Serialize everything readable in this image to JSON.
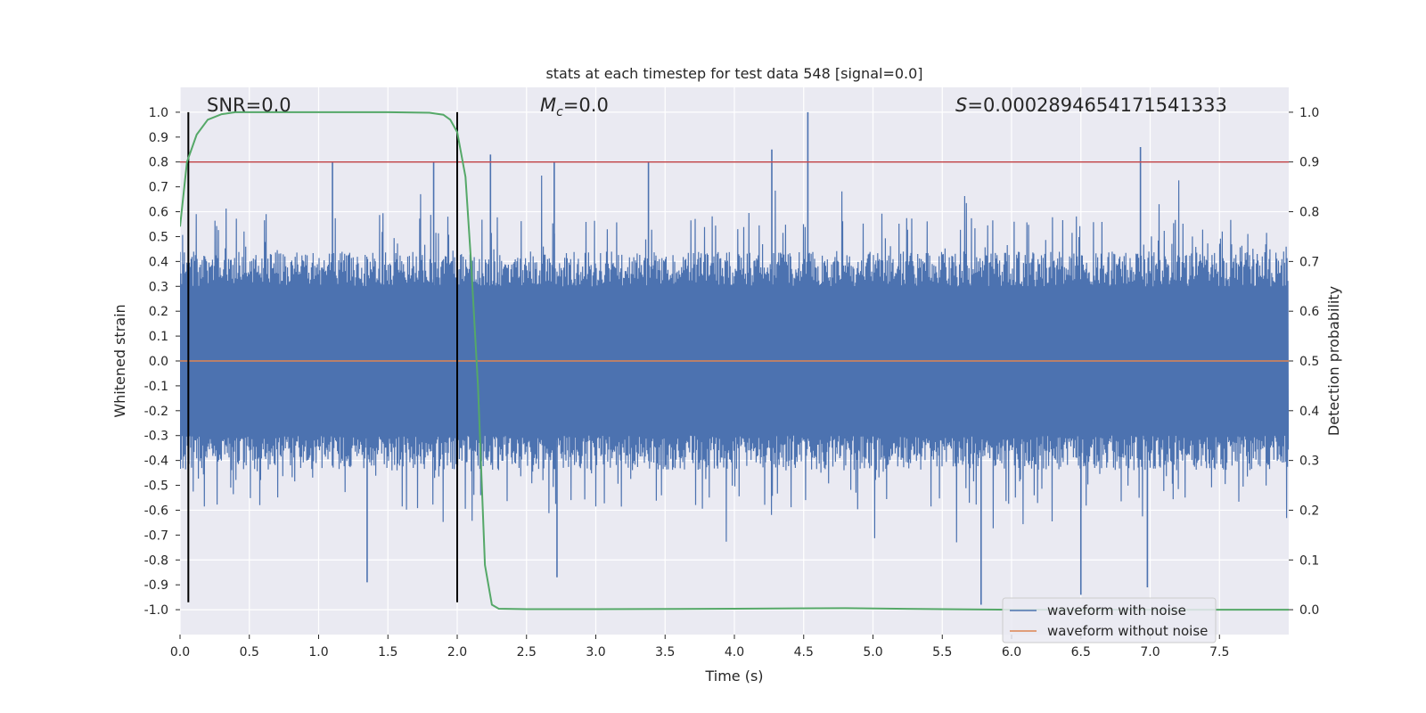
{
  "chart_data": {
    "type": "line",
    "title": "stats at each timestep for test data 548 [signal=0.0]",
    "xlabel": "Time (s)",
    "ylabel": "Whitened strain",
    "y2label": "Detection probability",
    "xlim": [
      0.0,
      8.0
    ],
    "ylim": [
      -1.1,
      1.1
    ],
    "y2lim": [
      -0.05,
      1.05
    ],
    "x_ticks": [
      "0.0",
      "0.5",
      "1.0",
      "1.5",
      "2.0",
      "2.5",
      "3.0",
      "3.5",
      "4.0",
      "4.5",
      "5.0",
      "5.5",
      "6.0",
      "6.5",
      "7.0",
      "7.5"
    ],
    "y_ticks": [
      "1.0",
      "0.9",
      "0.8",
      "0.7",
      "0.6",
      "0.5",
      "0.4",
      "0.3",
      "0.2",
      "0.1",
      "0.0",
      "-0.1",
      "-0.2",
      "-0.3",
      "-0.4",
      "-0.5",
      "-0.6",
      "-0.7",
      "-0.8",
      "-0.9",
      "-1.0"
    ],
    "y2_ticks": [
      "1.0",
      "0.9",
      "0.8",
      "0.7",
      "0.6",
      "0.5",
      "0.4",
      "0.3",
      "0.2",
      "0.1",
      "0.0"
    ],
    "annotations": {
      "snr": "SNR=0.0",
      "mc_symbol": "M",
      "mc_sub": "c",
      "mc_value": "=0.0",
      "s_symbol": "S",
      "s_value": "=0.0002894654171541333"
    },
    "threshold": {
      "value": 0.8,
      "axis": "left",
      "color": "#c44e52"
    },
    "vertical_lines": {
      "x": [
        0.06,
        2.0
      ],
      "y_range": [
        -0.97,
        1.0
      ],
      "color": "#000000"
    },
    "series": [
      {
        "name": "waveform with noise",
        "color": "#4c72b0",
        "axis": "left",
        "envelope": {
          "typical_abs": 0.45,
          "peak_max": 1.0,
          "peak_min": -0.98
        },
        "notable_peaks": [
          {
            "x": 1.1,
            "y": 0.8
          },
          {
            "x": 1.83,
            "y": 0.8
          },
          {
            "x": 2.24,
            "y": 0.83
          },
          {
            "x": 2.7,
            "y": 0.8
          },
          {
            "x": 3.38,
            "y": 0.8
          },
          {
            "x": 4.27,
            "y": 0.85
          },
          {
            "x": 4.53,
            "y": 1.0
          },
          {
            "x": 6.93,
            "y": 0.86
          },
          {
            "x": 1.35,
            "y": -0.89
          },
          {
            "x": 2.72,
            "y": -0.87
          },
          {
            "x": 5.78,
            "y": -0.98
          },
          {
            "x": 6.5,
            "y": -0.94
          },
          {
            "x": 6.98,
            "y": -0.91
          }
        ]
      },
      {
        "name": "waveform without noise",
        "color": "#dd8452",
        "axis": "left",
        "x": [
          0.0,
          8.0
        ],
        "y": [
          0.0,
          0.0
        ]
      },
      {
        "name": "detection probability",
        "color": "#55a868",
        "axis": "right",
        "x": [
          0.0,
          0.05,
          0.12,
          0.2,
          0.3,
          0.4,
          0.6,
          1.0,
          1.5,
          1.8,
          1.9,
          1.95,
          2.0,
          2.06,
          2.1,
          2.15,
          2.2,
          2.25,
          2.3,
          2.5,
          3.0,
          4.0,
          4.8,
          5.5,
          6.0,
          7.0,
          8.0
        ],
        "y": [
          0.77,
          0.9,
          0.955,
          0.985,
          0.996,
          1.0,
          1.0,
          1.0,
          1.0,
          0.999,
          0.995,
          0.985,
          0.96,
          0.87,
          0.7,
          0.45,
          0.09,
          0.01,
          0.002,
          0.001,
          0.001,
          0.002,
          0.003,
          0.001,
          0.0,
          0.0,
          0.0
        ]
      }
    ],
    "legend": {
      "placement": "lower-right",
      "entries": [
        {
          "label": "waveform with noise",
          "color": "#4c72b0"
        },
        {
          "label": "waveform without noise",
          "color": "#dd8452"
        }
      ]
    }
  }
}
